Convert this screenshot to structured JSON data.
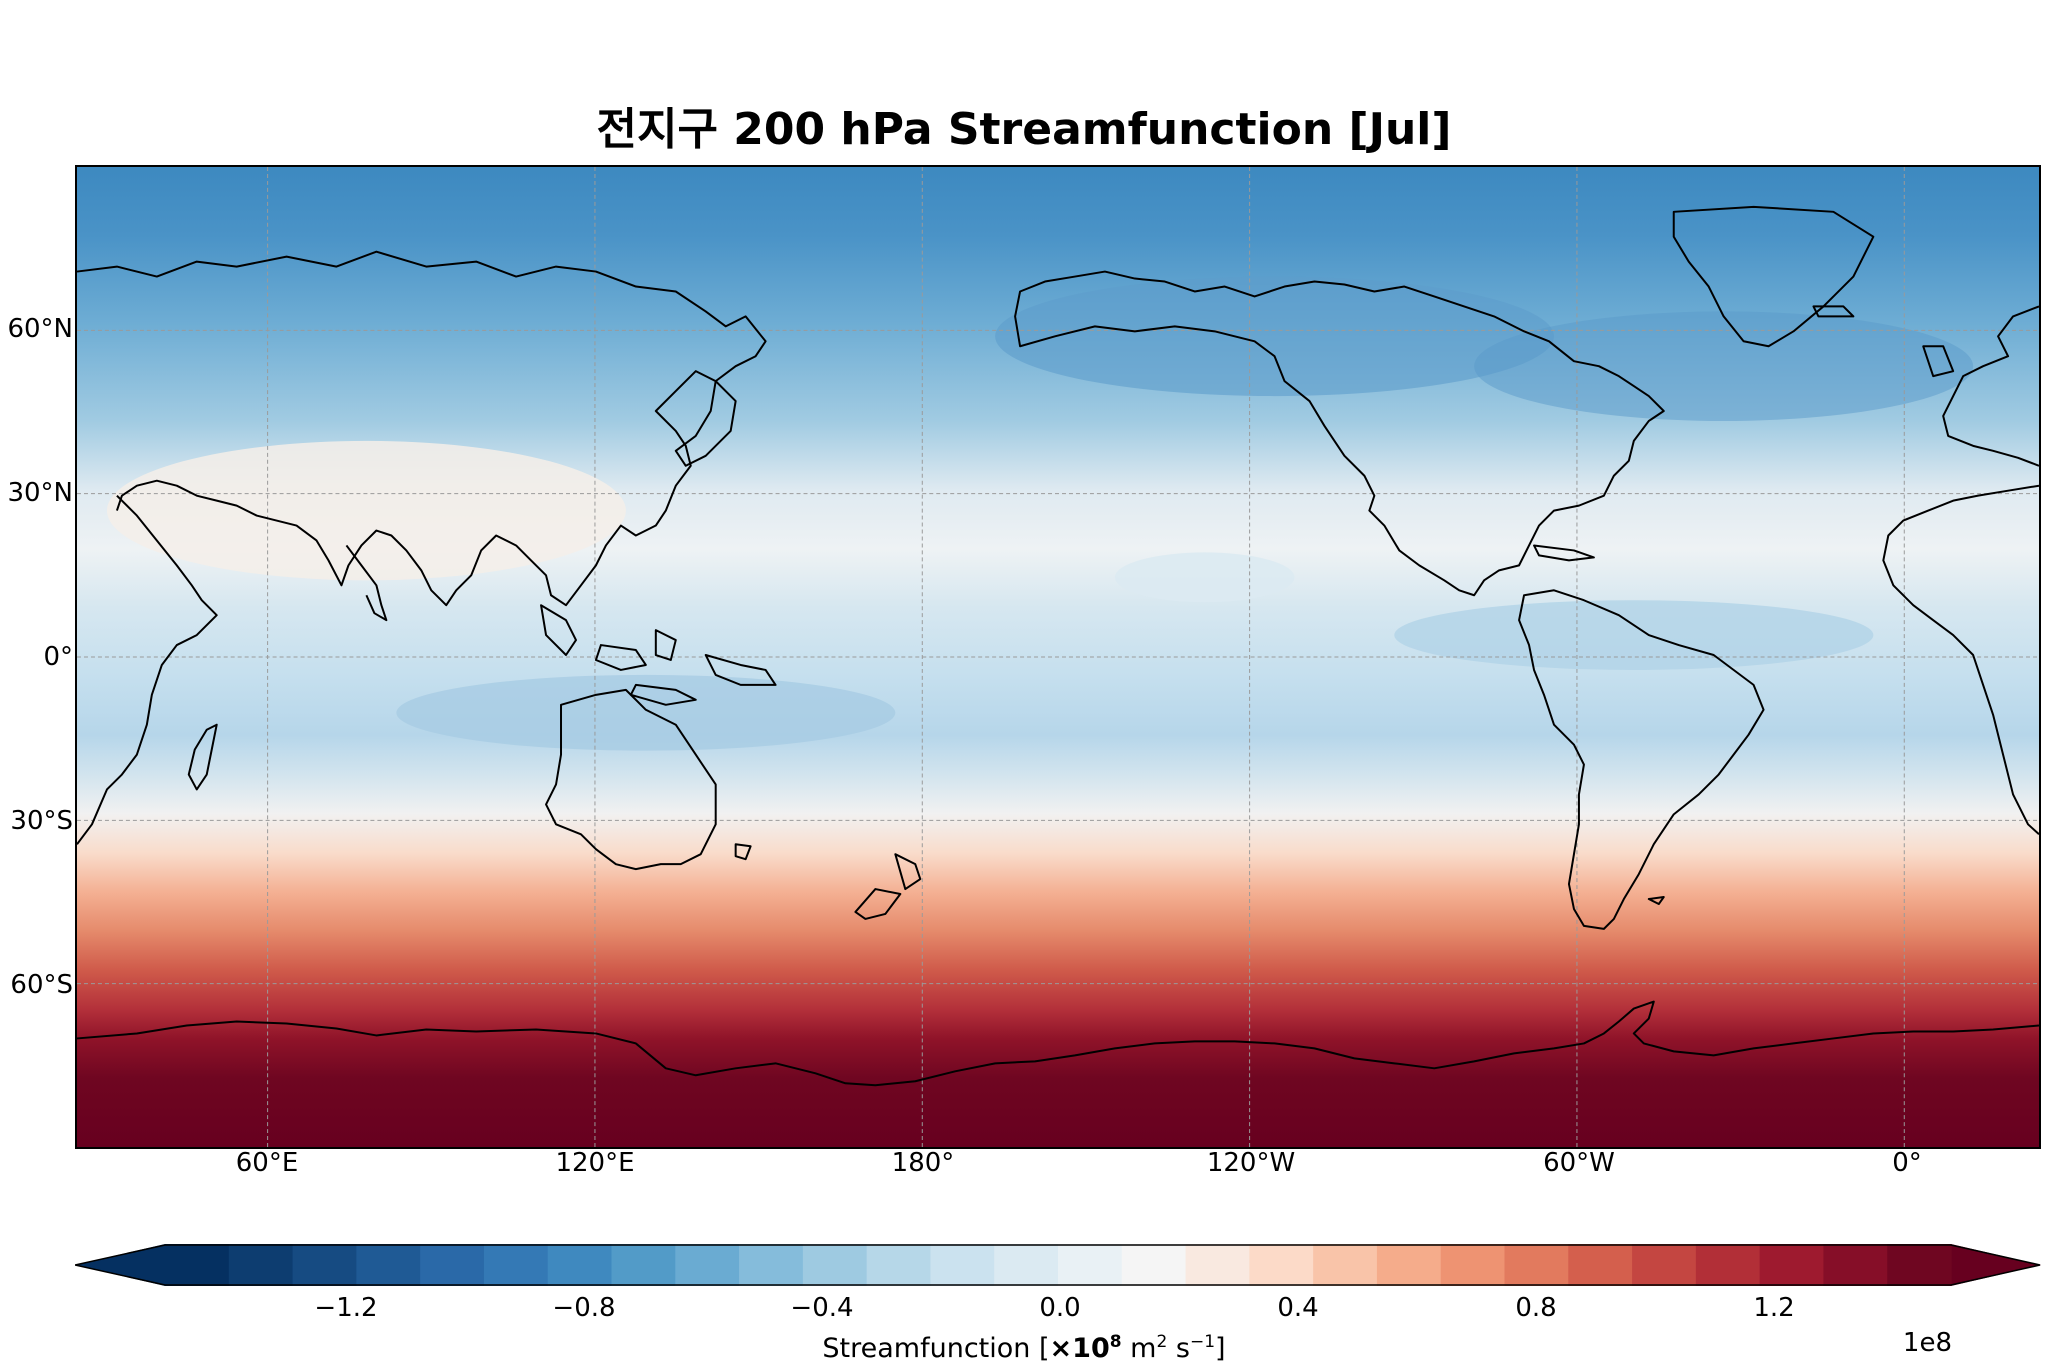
{
  "title": "전지구 200 hPa Streamfunction [Jul]",
  "map": {
    "projection": "PlateCarree, central longitude 180",
    "lat_ticks": [
      "60°N",
      "30°N",
      "0°",
      "30°S",
      "60°S"
    ],
    "lon_ticks": [
      "60°E",
      "120°E",
      "180°",
      "120°W",
      "60°W",
      "0°"
    ],
    "gridlines": true,
    "coastlines": true,
    "colormap": "RdBu_r",
    "field_colors": {
      "high_north": "#2b6aa8",
      "mid_north": "#9cc8e0",
      "tropics": "#c9e0ee",
      "subtropics_south": "#f3f1ee",
      "mid_south": "#ea8f70",
      "high_south": "#67001f"
    }
  },
  "colorbar": {
    "tick_labels": [
      "−1.2",
      "−0.8",
      "−0.4",
      "0.0",
      "0.4",
      "0.8",
      "1.2"
    ],
    "label_prefix": "Streamfunction [",
    "label_multiplier": "×10",
    "label_exp": "8",
    "label_unit_m": " m",
    "label_unit_m_exp": "2",
    "label_unit_s": " s",
    "label_unit_s_exp": "−1",
    "label_suffix": "]",
    "offset_text": "1e8",
    "min": -1.5,
    "max": 1.5,
    "step": 0.1,
    "extend": "both",
    "colors": [
      "#053061",
      "#0d3d70",
      "#164b82",
      "#1f5a95",
      "#2a69a8",
      "#3479b5",
      "#3f89bf",
      "#529bc8",
      "#6aabd2",
      "#85bcdb",
      "#9ecae1",
      "#b6d7e8",
      "#cbe2ef",
      "#dbeaf2",
      "#e9f1f5",
      "#f5f5f5",
      "#f9e9e0",
      "#fcdac8",
      "#f9c4a9",
      "#f5ac8b",
      "#ee9372",
      "#e27a5e",
      "#d45f4d",
      "#c44641",
      "#b22f37",
      "#9e1a2f",
      "#860e28",
      "#6f0621"
    ],
    "under_color": "#053061",
    "over_color": "#67001f"
  }
}
